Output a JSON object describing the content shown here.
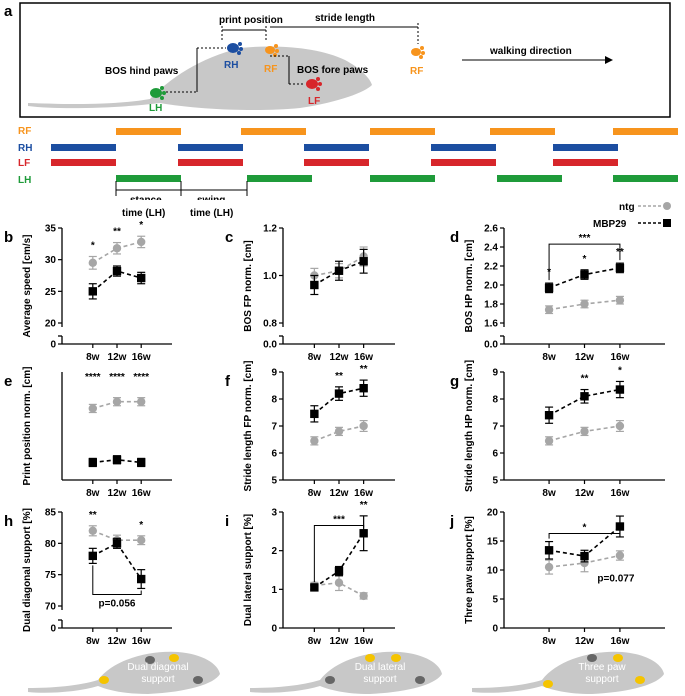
{
  "colors": {
    "RF": "#f7941d",
    "RH": "#1c4ea1",
    "LF": "#d7262b",
    "LH": "#1f9b3a",
    "ntg": "#a6a6a6",
    "mbp": "#000000",
    "body": "#c8c8c8"
  },
  "panel_a": {
    "letter": "a",
    "labels": {
      "print_position": "print position",
      "stride_length": "stride length",
      "bos_hind": "BOS hind paws",
      "bos_fore": "BOS fore paws",
      "walking_direction": "walking direction",
      "RH": "RH",
      "RF": "RF",
      "RF2": "RF",
      "LF": "LF",
      "LH": "LH"
    },
    "gait": {
      "rows": [
        "RF",
        "RH",
        "LF",
        "LH"
      ],
      "stance_label_1": "stance",
      "stance_label_2": "time (LH)",
      "swing_label_1": "swing",
      "swing_label_2": "time (LH)"
    }
  },
  "legend": {
    "ntg": "ntg",
    "mbp": "MBP29"
  },
  "chart_data": [
    {
      "letter": "b",
      "type": "line",
      "ylabel": "Average speed [cm/s]",
      "categories": [
        "8w",
        "12w",
        "16w"
      ],
      "yticks": [
        "0",
        "20",
        "25",
        "30",
        "35"
      ],
      "ylim": [
        20,
        35
      ],
      "axis_break": true,
      "series": [
        {
          "name": "ntg",
          "values": [
            29.5,
            31.8,
            32.8
          ],
          "err": [
            1.0,
            0.9,
            0.9
          ]
        },
        {
          "name": "MBP29",
          "values": [
            25.0,
            28.2,
            27.1
          ],
          "err": [
            1.2,
            0.8,
            0.9
          ]
        }
      ],
      "sig": [
        "*",
        "**",
        "*"
      ]
    },
    {
      "letter": "c",
      "type": "line",
      "ylabel": "BOS FP norm. [cm]",
      "categories": [
        "8w",
        "12w",
        "16w"
      ],
      "yticks": [
        "0.0",
        "0.8",
        "1.0",
        "1.2"
      ],
      "ylim": [
        0.8,
        1.2
      ],
      "axis_break": true,
      "series": [
        {
          "name": "ntg",
          "values": [
            1.0,
            1.02,
            1.08
          ],
          "err": [
            0.03,
            0.03,
            0.04
          ]
        },
        {
          "name": "MBP29",
          "values": [
            0.96,
            1.02,
            1.06
          ],
          "err": [
            0.04,
            0.04,
            0.05
          ]
        }
      ],
      "sig": [
        "",
        "",
        ""
      ]
    },
    {
      "letter": "d",
      "type": "line",
      "ylabel": "BOS HP norm. [cm]",
      "categories": [
        "8w",
        "12w",
        "16w"
      ],
      "yticks": [
        "0.0",
        "1.6",
        "1.8",
        "2.0",
        "2.2",
        "2.4",
        "2.6"
      ],
      "ylim": [
        1.6,
        2.6
      ],
      "axis_break": true,
      "series": [
        {
          "name": "ntg",
          "values": [
            1.74,
            1.8,
            1.84
          ],
          "err": [
            0.04,
            0.04,
            0.04
          ]
        },
        {
          "name": "MBP29",
          "values": [
            1.97,
            2.11,
            2.18
          ],
          "err": [
            0.05,
            0.05,
            0.05
          ]
        }
      ],
      "sig": [
        "*",
        "*",
        "**"
      ],
      "bracket": {
        "from": 0,
        "to": 2,
        "label": "***"
      }
    },
    {
      "letter": "e",
      "type": "line",
      "ylabel": "Print position norm. [cm]",
      "categories": [
        "8w",
        "12w",
        "16w"
      ],
      "yticks": [],
      "ylim": [
        -0.2,
        0.6
      ],
      "axis_break": false,
      "series": [
        {
          "name": "ntg",
          "values": [
            0.33,
            0.38,
            0.38
          ],
          "err": [
            0.03,
            0.03,
            0.03
          ]
        },
        {
          "name": "MBP29",
          "values": [
            -0.07,
            -0.05,
            -0.07
          ],
          "err": [
            0.03,
            0.03,
            0.03
          ]
        }
      ],
      "sig": [
        "****",
        "****",
        "****"
      ]
    },
    {
      "letter": "f",
      "type": "line",
      "ylabel": "Stride length FP norm. [cm]",
      "categories": [
        "8w",
        "12w",
        "16w"
      ],
      "yticks": [
        "5",
        "6",
        "7",
        "8",
        "9"
      ],
      "ylim": [
        5,
        9
      ],
      "axis_break": false,
      "series": [
        {
          "name": "ntg",
          "values": [
            6.45,
            6.8,
            7.0
          ],
          "err": [
            0.15,
            0.15,
            0.2
          ]
        },
        {
          "name": "MBP29",
          "values": [
            7.45,
            8.2,
            8.4
          ],
          "err": [
            0.3,
            0.25,
            0.3
          ]
        }
      ],
      "sig": [
        "",
        "**",
        "**"
      ]
    },
    {
      "letter": "g",
      "type": "line",
      "ylabel": "Stride length HP norm. [cm]",
      "categories": [
        "8w",
        "12w",
        "16w"
      ],
      "yticks": [
        "5",
        "6",
        "7",
        "8",
        "9"
      ],
      "ylim": [
        5,
        9
      ],
      "axis_break": false,
      "series": [
        {
          "name": "ntg",
          "values": [
            6.45,
            6.8,
            7.0
          ],
          "err": [
            0.15,
            0.15,
            0.2
          ]
        },
        {
          "name": "MBP29",
          "values": [
            7.4,
            8.1,
            8.35
          ],
          "err": [
            0.3,
            0.25,
            0.3
          ]
        }
      ],
      "sig": [
        "",
        "**",
        "*"
      ]
    },
    {
      "letter": "h",
      "type": "line",
      "ylabel": "Dual diagonal support [%]",
      "categories": [
        "8w",
        "12w",
        "16w"
      ],
      "yticks": [
        "0",
        "70",
        "75",
        "80",
        "85"
      ],
      "ylim": [
        70,
        85
      ],
      "axis_break": true,
      "series": [
        {
          "name": "ntg",
          "values": [
            82.0,
            80.5,
            80.5
          ],
          "err": [
            0.8,
            0.8,
            0.7
          ]
        },
        {
          "name": "MBP29",
          "values": [
            78.0,
            80.0,
            74.3
          ],
          "err": [
            1.2,
            0.8,
            1.5
          ]
        }
      ],
      "sig": [
        "**",
        "",
        "*"
      ],
      "bracket": {
        "from": 0,
        "to": 2,
        "label": "p=0.056",
        "below": true
      }
    },
    {
      "letter": "i",
      "type": "line",
      "ylabel": "Dual lateral support [%]",
      "categories": [
        "8w",
        "12w",
        "16w"
      ],
      "yticks": [
        "0",
        "1",
        "2",
        "3"
      ],
      "ylim": [
        0,
        3
      ],
      "axis_break": false,
      "series": [
        {
          "name": "ntg",
          "values": [
            1.1,
            1.17,
            0.83
          ],
          "err": [
            0.08,
            0.2,
            0.08
          ]
        },
        {
          "name": "MBP29",
          "values": [
            1.05,
            1.47,
            2.45
          ],
          "err": [
            0.06,
            0.12,
            0.45
          ]
        }
      ],
      "sig": [
        "",
        "",
        "**"
      ],
      "bracket": {
        "from": 0,
        "to": 2,
        "label": "***"
      }
    },
    {
      "letter": "j",
      "type": "line",
      "ylabel": "Three paw support [%]",
      "categories": [
        "8w",
        "12w",
        "16w"
      ],
      "yticks": [
        "0",
        "5",
        "10",
        "15",
        "20"
      ],
      "ylim": [
        0,
        20
      ],
      "axis_break": false,
      "series": [
        {
          "name": "ntg",
          "values": [
            10.5,
            11.2,
            12.5
          ],
          "err": [
            1.2,
            1.5,
            0.8
          ]
        },
        {
          "name": "MBP29",
          "values": [
            13.4,
            12.4,
            17.5
          ],
          "err": [
            1.5,
            1.0,
            1.8
          ]
        }
      ],
      "sig": [
        "",
        "",
        ""
      ],
      "bracket": {
        "from": 0,
        "to": 2,
        "label": "*"
      },
      "note": "p=0.077"
    }
  ],
  "mouse_captions": {
    "h": [
      "Dual diagonal",
      "support"
    ],
    "i": [
      "Dual lateral",
      "support"
    ],
    "j": [
      "Three paw",
      "support"
    ]
  }
}
